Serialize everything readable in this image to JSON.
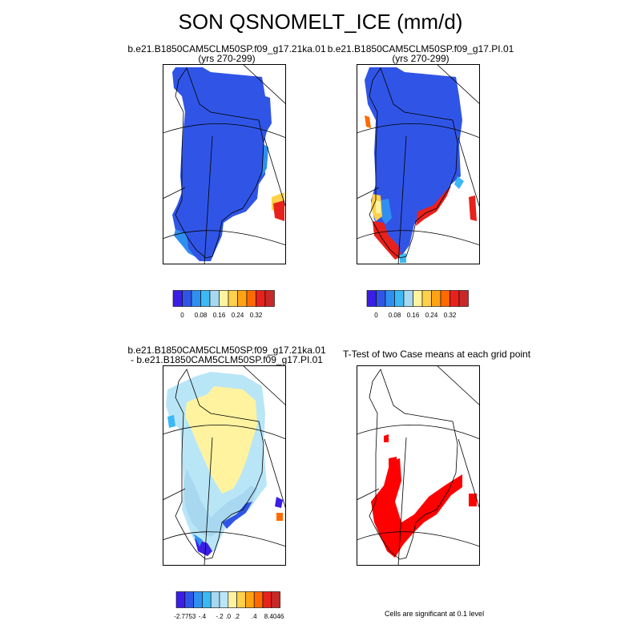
{
  "title": "SON QSNOMELT_ICE (mm/d)",
  "panels": [
    {
      "title1": "b.e21.B1850CAM5CLM50SP.f09_g17.21ka.01",
      "title2": "(yrs 270-299)"
    },
    {
      "title1": "b.e21.B1850CAM5CLM50SP.f09_g17.PI.01",
      "title2": "(yrs 270-299)"
    },
    {
      "title1": "b.e21.B1850CAM5CLM50SP.f09_g17.21ka.01",
      "title2": "- b.e21.B1850CAM5CLM50SP.f09_g17.PI.01"
    },
    {
      "title1": "T-Test of two Case means at each grid point",
      "title2": ""
    }
  ],
  "footnote": "Cells are significant at 0.1 level",
  "chart_data": [
    {
      "type": "heatmap",
      "title": "b.e21.B1850CAM5CLM50SP.f09_g17.21ka.01 (yrs 270-299)",
      "colorbar": {
        "colors": [
          "#3b1ee6",
          "#3055e6",
          "#2f8ff0",
          "#3cb8f5",
          "#a8d8f0",
          "#fff3a0",
          "#ffd04a",
          "#ffa314",
          "#ff6a00",
          "#e8211c",
          "#c82828"
        ],
        "tick_labels": [
          "0",
          "0.08",
          "0.16",
          "0.24",
          "0.32"
        ]
      }
    },
    {
      "type": "heatmap",
      "title": "b.e21.B1850CAM5CLM50SP.f09_g17.PI.01 (yrs 270-299)",
      "colorbar": {
        "colors": [
          "#3b1ee6",
          "#3055e6",
          "#2f8ff0",
          "#3cb8f5",
          "#a8d8f0",
          "#fff3a0",
          "#ffd04a",
          "#ffa314",
          "#ff6a00",
          "#e8211c",
          "#c82828"
        ],
        "tick_labels": [
          "0",
          "0.08",
          "0.16",
          "0.24",
          "0.32"
        ]
      }
    },
    {
      "type": "heatmap",
      "title": "b.e21.B1850CAM5CLM50SP.f09_g17.21ka.01 - b.e21.B1850CAM5CLM50SP.f09_g17.PI.01",
      "colorbar": {
        "colors": [
          "#3b1ee6",
          "#3055e6",
          "#2f8ff0",
          "#3cb8f5",
          "#a8d8f0",
          "#b9e6f7",
          "#fff3a0",
          "#ffd04a",
          "#ffa314",
          "#ff6a00",
          "#e8211c",
          "#c82828"
        ],
        "tick_labels": [
          "-2.7753",
          "-.4",
          "-.2",
          ".0",
          ".2",
          ".4",
          "8.4046"
        ]
      }
    },
    {
      "type": "heatmap",
      "title": "T-Test of two Case means at each grid point",
      "significant_color": "#ff0000"
    }
  ]
}
